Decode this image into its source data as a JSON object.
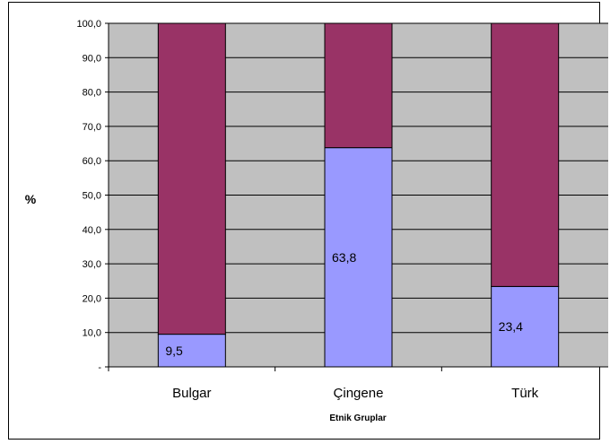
{
  "chart_data": {
    "type": "bar",
    "stacked": true,
    "categories": [
      "Bulgar",
      "Çingene",
      "Türk"
    ],
    "series": [
      {
        "values": [
          9.5,
          63.8,
          23.4
        ],
        "color": "#9999ff"
      },
      {
        "values": [
          90.5,
          36.2,
          76.6
        ],
        "color": "#993366"
      }
    ],
    "data_labels": [
      "9,5",
      "63,8",
      "23,4"
    ],
    "title": "",
    "xlabel": "Etnik Gruplar",
    "ylabel": "%",
    "ylim": [
      0,
      100
    ],
    "yticks": [
      {
        "value": 0,
        "label": "-"
      },
      {
        "value": 10,
        "label": "10,0"
      },
      {
        "value": 20,
        "label": "20,0"
      },
      {
        "value": 30,
        "label": "30,0"
      },
      {
        "value": 40,
        "label": "40,0"
      },
      {
        "value": 50,
        "label": "50,0"
      },
      {
        "value": 60,
        "label": "60,0"
      },
      {
        "value": 70,
        "label": "70,0"
      },
      {
        "value": 80,
        "label": "80,0"
      },
      {
        "value": 90,
        "label": "90,0"
      },
      {
        "value": 100,
        "label": "100,0"
      }
    ],
    "grid": true,
    "plot_background": "#c0c0c0",
    "legend": "none"
  }
}
